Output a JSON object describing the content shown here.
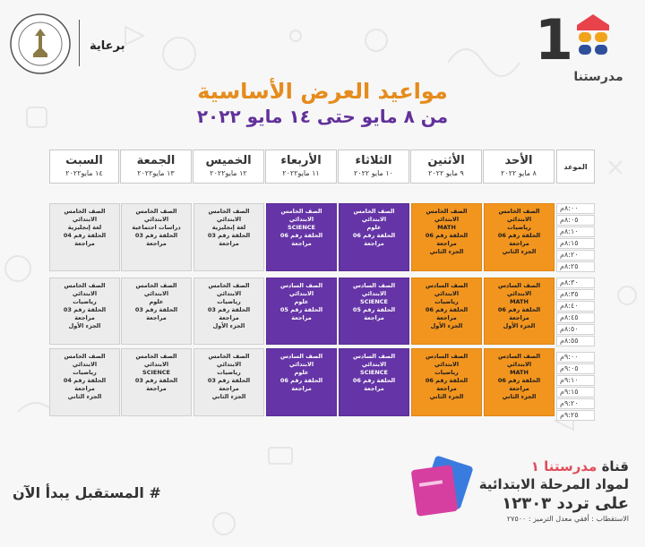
{
  "header": {
    "brand_number": "1",
    "brand_name": "مدرستنا",
    "sponsor": "برعاية",
    "brand_colors": [
      "#e8434b",
      "#f2a31c",
      "#2e4f9b"
    ]
  },
  "title": "مواعيد العرض الأساسية",
  "subtitle": "من ٨ مايو حتى ١٤ مايو ٢٠٢٢",
  "table": {
    "time_header": "الموعد",
    "days": [
      {
        "day": "الأحد",
        "date": "٨ مايو ٢٠٢٢"
      },
      {
        "day": "الأثنين",
        "date": "٩ مايو ٢٠٢٢"
      },
      {
        "day": "الثلاثاء",
        "date": "١٠ مايو ٢٠٢٢"
      },
      {
        "day": "الأربعاء",
        "date": "١١ مايو٢٠٢٢"
      },
      {
        "day": "الخميس",
        "date": "١٢ مايو٢٠٢٢"
      },
      {
        "day": "الجمعة",
        "date": "١٣ مايو٢٠٢٢"
      },
      {
        "day": "السبت",
        "date": "١٤ مايو٢٠٢٢"
      }
    ],
    "times": [
      "٨:٠٠م",
      "٨:٠٥م",
      "٨:١٠م",
      "٨:١٥م",
      "٨:٢٠م",
      "٨:٢٥م",
      "٨:٣٠م",
      "٨:٣٥م",
      "٨:٤٠م",
      "٨:٤٥م",
      "٨:٥٠م",
      "٨:٥٥م",
      "٩:٠٠م",
      "٩:٠٥م",
      "٩:١٠م",
      "٩:١٥م",
      "٩:٢٠م",
      "٩:٢٥م"
    ],
    "blocks": [
      [
        {
          "color": "orange",
          "lines": [
            "الصف الخامس الابتدائي",
            "رياضيات",
            "الحلقة رقم 06 مراجعة",
            "الجزء الثاني"
          ]
        },
        {
          "color": "orange",
          "lines": [
            "الصف الخامس الابتدائي",
            "MATH",
            "الحلقة رقم 06 مراجعة",
            "الجزء الثاني"
          ]
        },
        {
          "color": "purple",
          "lines": [
            "الصف الخامس الابتدائي",
            "علوم",
            "الحلقة رقم 06 مراجعة"
          ]
        },
        {
          "color": "purple",
          "lines": [
            "الصف الخامس الابتدائي",
            "SCIENCE",
            "الحلقة رقم 06 مراجعة"
          ]
        },
        {
          "color": "gray",
          "lines": [
            "الصف الخامس الابتدائي",
            "لغة إنجليزية",
            "الحلقة رقم 03 مراجعة"
          ]
        },
        {
          "color": "gray",
          "lines": [
            "الصف الخامس الابتدائي",
            "دراسات اجتماعية",
            "الحلقة رقم 03 مراجعة"
          ]
        },
        {
          "color": "gray",
          "lines": [
            "الصف الخامس الابتدائي",
            "لغة إنجليزية",
            "الحلقة رقم 04 مراجعة"
          ]
        }
      ],
      [
        {
          "color": "orange",
          "lines": [
            "الصف السادس الابتدائي",
            "MATH",
            "الحلقة رقم 06 مراجعة",
            "الجزء الأول"
          ]
        },
        {
          "color": "orange",
          "lines": [
            "الصف السادس الابتدائي",
            "رياضيات",
            "الحلقة رقم 06 مراجعة",
            "الجزء الأول"
          ]
        },
        {
          "color": "purple",
          "lines": [
            "الصف السادس الابتدائي",
            "SCIENCE",
            "الحلقة رقم 05 مراجعة"
          ]
        },
        {
          "color": "purple",
          "lines": [
            "الصف السادس الابتدائي",
            "علوم",
            "الحلقة رقم 05 مراجعة"
          ]
        },
        {
          "color": "gray",
          "lines": [
            "الصف الخامس الابتدائي",
            "رياضيات",
            "الحلقة رقم 03 مراجعة",
            "الجزء الأول"
          ]
        },
        {
          "color": "gray",
          "lines": [
            "الصف الخامس الابتدائي",
            "علوم",
            "الحلقة رقم 03 مراجعة"
          ]
        },
        {
          "color": "gray",
          "lines": [
            "الصف الخامس الابتدائي",
            "رياضيات",
            "الحلقة رقم 03 مراجعة",
            "الجزء الأول"
          ]
        }
      ],
      [
        {
          "color": "orange",
          "lines": [
            "الصف السادس الابتدائي",
            "MATH",
            "الحلقة رقم 06 مراجعة",
            "الجزء الثاني"
          ]
        },
        {
          "color": "orange",
          "lines": [
            "الصف السادس الابتدائي",
            "رياضيات",
            "الحلقة رقم 06 مراجعة",
            "الجزء الثاني"
          ]
        },
        {
          "color": "purple",
          "lines": [
            "الصف السادس الابتدائي",
            "SCIENCE",
            "الحلقة رقم 06 مراجعة"
          ]
        },
        {
          "color": "purple",
          "lines": [
            "الصف السادس الابتدائي",
            "علوم",
            "الحلقة رقم 06 مراجعة"
          ]
        },
        {
          "color": "gray",
          "lines": [
            "الصف الخامس الابتدائي",
            "رياضيات",
            "الحلقة رقم 03 مراجعة",
            "الجزء الثاني"
          ]
        },
        {
          "color": "gray",
          "lines": [
            "الصف الخامس الابتدائي",
            "SCIENCE",
            "الحلقة رقم 03 مراجعة"
          ]
        },
        {
          "color": "gray",
          "lines": [
            "الصف الخامس الابتدائي",
            "رياضيات",
            "الحلقة رقم 04 مراجعة",
            "الجزء الثاني"
          ]
        }
      ]
    ],
    "colors": {
      "orange": "#f2951f",
      "purple": "#6534a6",
      "gray": "#ececec"
    }
  },
  "footer": {
    "slogan": "# المستقبل يبدأ الآن",
    "channel_prefix": "قناة",
    "channel_name": "مدرستنا ١",
    "line2": "لمواد المرحلة الابتدائية",
    "line3": "على تردد ١٢٣٠٣",
    "line4": "الاستقطاب : أفقي معدل الترميز : ٢٧٥٠٠"
  }
}
